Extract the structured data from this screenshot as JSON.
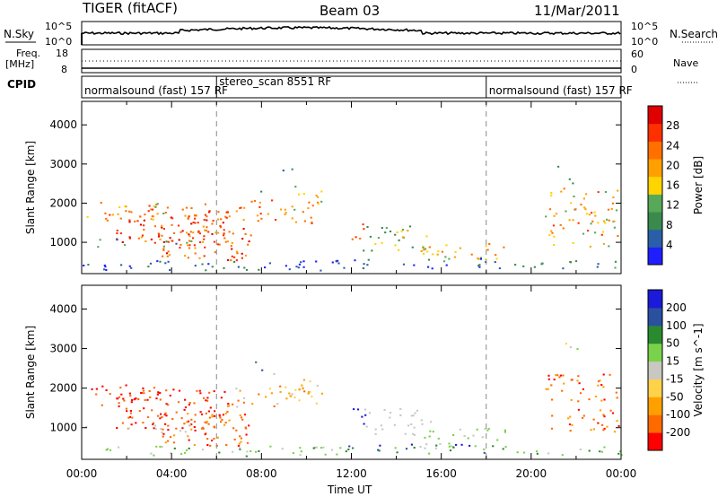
{
  "header": {
    "radar": "TIGER (fitACF)",
    "beam": "Beam 03",
    "date": "11/Mar/2011"
  },
  "strip_labels": {
    "nsky": "N.Sky",
    "nsearch": "N.Search",
    "freq_line1": "Freq.",
    "freq_line2": "[MHz]",
    "nave": "Nave",
    "cpid": "CPID",
    "nsky_hi": "10^5",
    "nsky_lo": "10^0",
    "nsearch_hi": "10^5",
    "nsearch_lo": "10^0",
    "freq_hi": "18",
    "freq_lo": "8",
    "nave_hi": "60",
    "nave_lo": "0"
  },
  "cpid_segments": [
    {
      "label": "normalsound (fast) 157 RF",
      "start": 0
    },
    {
      "label": "stereo_scan 8551 RF",
      "start": 6
    },
    {
      "label": "normalsound (fast) 157 RF",
      "start": 18
    }
  ],
  "colors": {
    "power": [
      "#1e1eff",
      "#2a5ea8",
      "#3a8a4e",
      "#58a85a",
      "#ffd400",
      "#ffa000",
      "#ff7000",
      "#ff3000",
      "#e00000"
    ],
    "velocity": [
      "#ff0000",
      "#ff6a00",
      "#ffa000",
      "#ffd24a",
      "#c8c8c0",
      "#7ad24a",
      "#2a8a30",
      "#2a50a0",
      "#1a1ad8"
    ]
  },
  "chart_data": [
    {
      "type": "heatmap",
      "panel": "power",
      "xlabel": "Time UT",
      "ylabel": "Slant Range [km]",
      "x_ticks": [
        "00:00",
        "04:00",
        "08:00",
        "12:00",
        "16:00",
        "20:00",
        "00:00"
      ],
      "x_range_hours": [
        0,
        24
      ],
      "y_ticks": [
        1000,
        2000,
        3000,
        4000
      ],
      "ylim": [
        200,
        4600
      ],
      "colorbar": {
        "label": "Power [dB]",
        "ticks": [
          4,
          8,
          12,
          16,
          20,
          24,
          28
        ],
        "range": [
          0,
          32
        ]
      },
      "dashed_lines_hours": [
        6,
        18
      ]
    },
    {
      "type": "heatmap",
      "panel": "velocity",
      "xlabel": "Time UT",
      "ylabel": "Slant Range [km]",
      "x_ticks": [
        "00:00",
        "04:00",
        "08:00",
        "12:00",
        "16:00",
        "20:00",
        "00:00"
      ],
      "x_range_hours": [
        0,
        24
      ],
      "y_ticks": [
        1000,
        2000,
        3000,
        4000
      ],
      "ylim": [
        200,
        4600
      ],
      "colorbar": {
        "label": "Velocity [m s^-1]",
        "ticks": [
          -200,
          -100,
          -50,
          -15,
          15,
          50,
          100,
          200
        ]
      },
      "dashed_lines_hours": [
        6,
        18
      ]
    }
  ]
}
